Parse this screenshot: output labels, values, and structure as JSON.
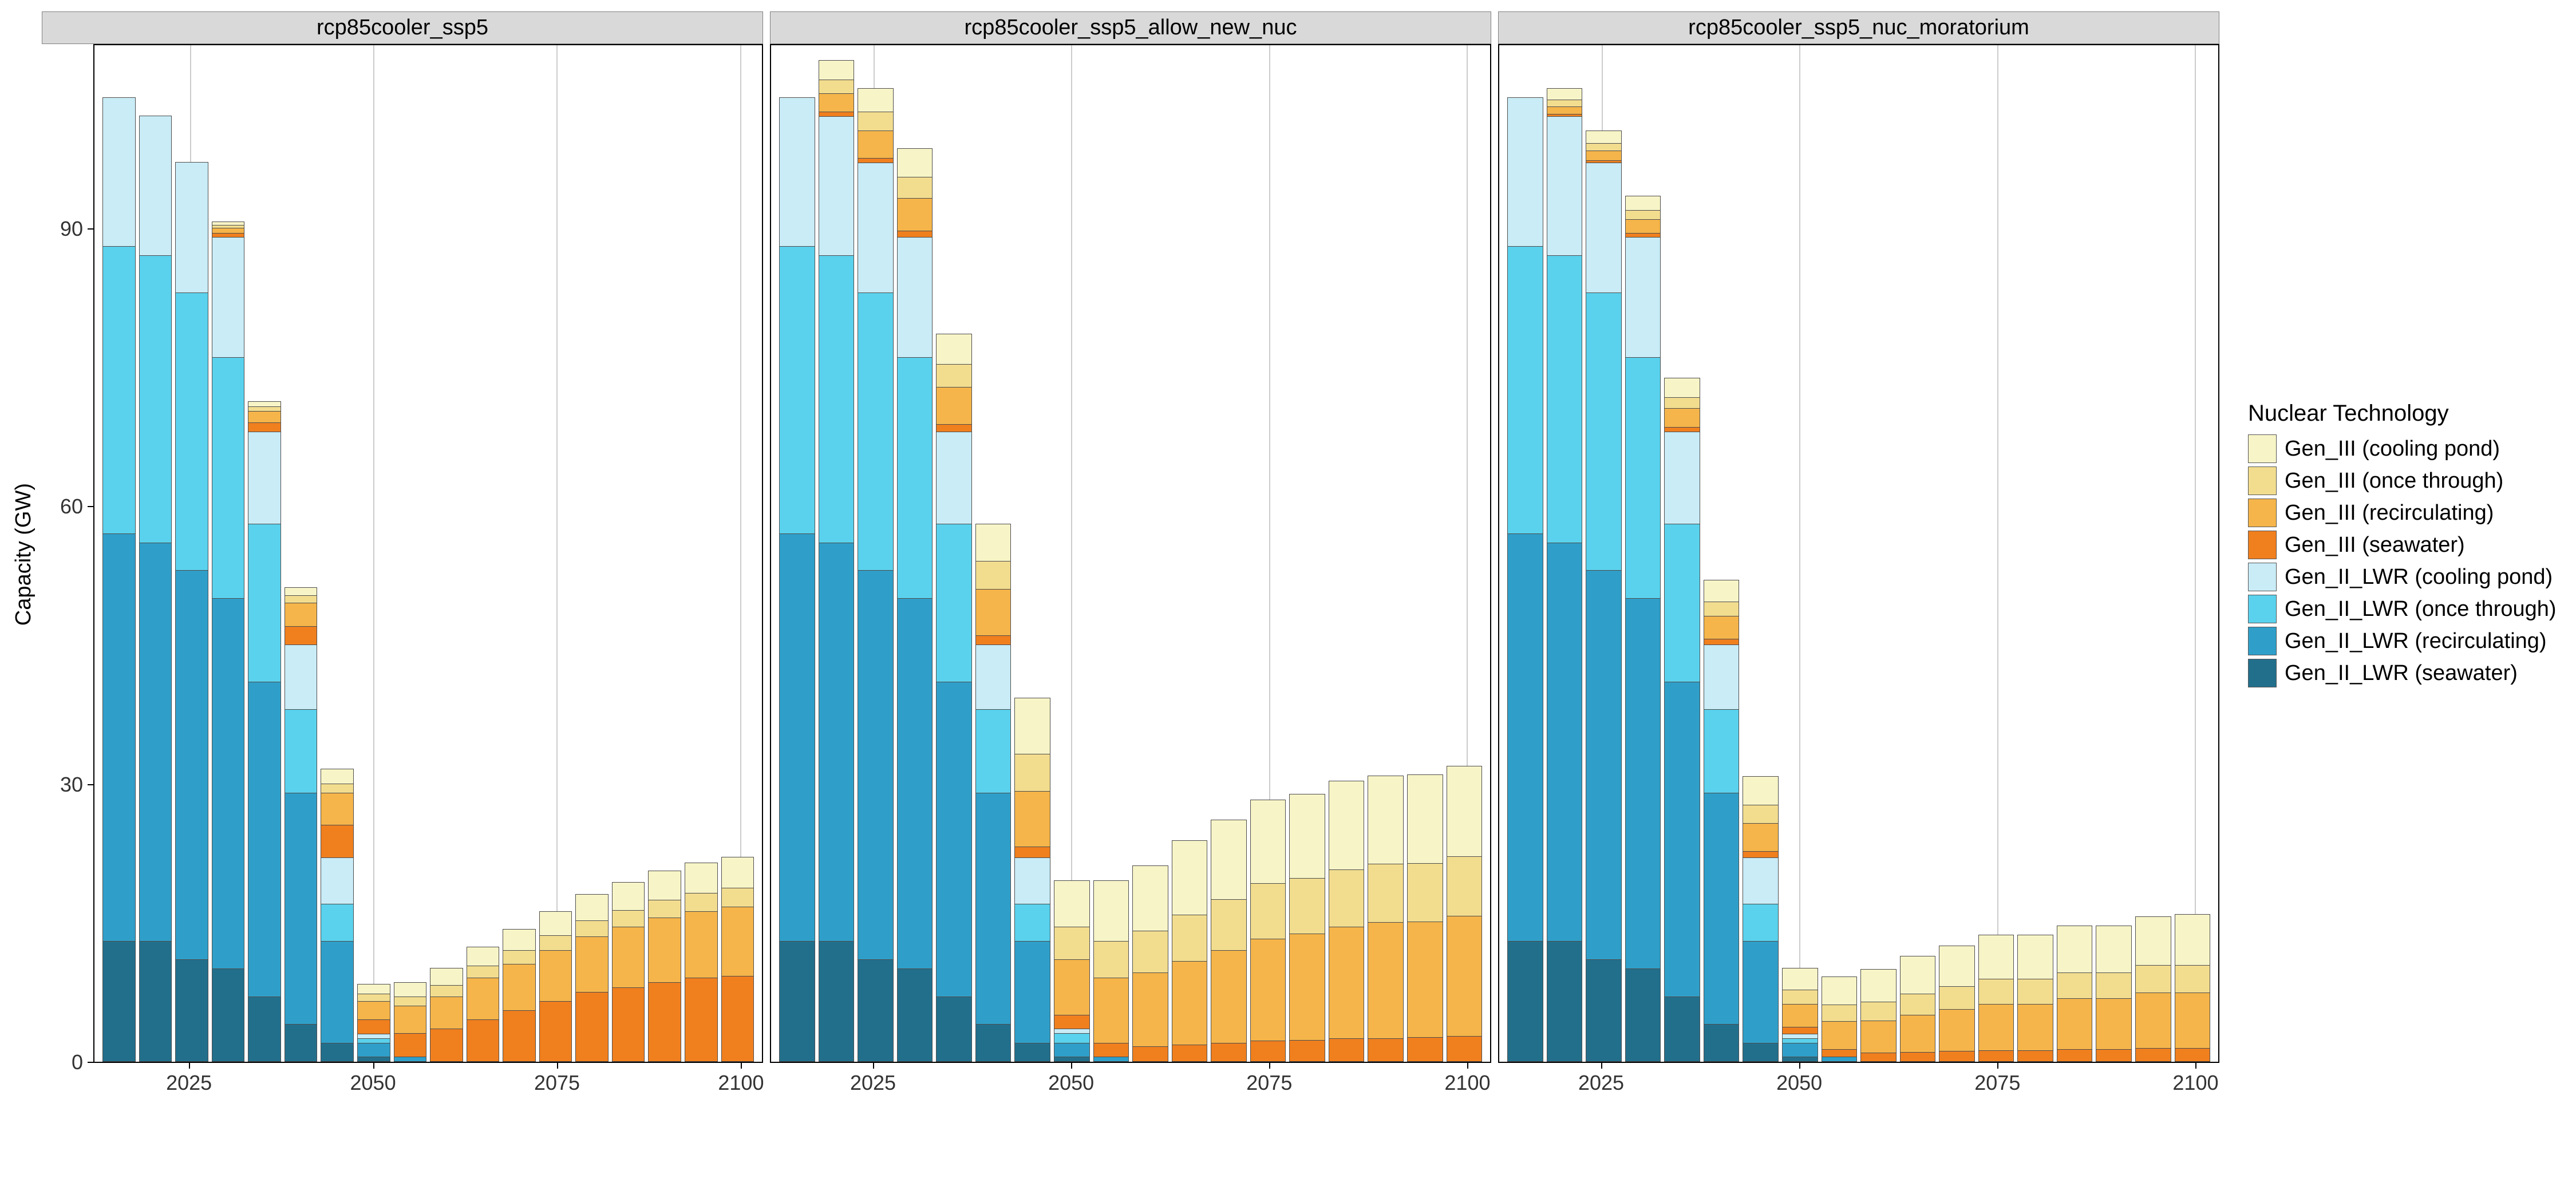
{
  "y_axis": {
    "title": "Capacity (GW)",
    "ticks": [
      0,
      30,
      60,
      90
    ],
    "max_display": 110
  },
  "x_axis": {
    "ticks": [
      2025,
      2050,
      2075,
      2100
    ],
    "years": [
      2015,
      2020,
      2025,
      2030,
      2035,
      2040,
      2045,
      2050,
      2055,
      2060,
      2065,
      2070,
      2075,
      2080,
      2085,
      2090,
      2095,
      2100
    ],
    "min": 2012,
    "max": 2103
  },
  "legend": {
    "title": "Nuclear Technology",
    "items": [
      {
        "key": "g3_pond",
        "label": "Gen_III (cooling pond)",
        "color": "#f7f4c7"
      },
      {
        "key": "g3_once",
        "label": "Gen_III (once through)",
        "color": "#f2dd8f"
      },
      {
        "key": "g3_recirc",
        "label": "Gen_III (recirculating)",
        "color": "#f5b54a"
      },
      {
        "key": "g3_sea",
        "label": "Gen_III (seawater)",
        "color": "#f07f1e"
      },
      {
        "key": "g2_pond",
        "label": "Gen_II_LWR (cooling pond)",
        "color": "#c9ecf7"
      },
      {
        "key": "g2_once",
        "label": "Gen_II_LWR (once through)",
        "color": "#5ad2ed"
      },
      {
        "key": "g2_recirc",
        "label": "Gen_II_LWR (recirculating)",
        "color": "#2f9fc9"
      },
      {
        "key": "g2_sea",
        "label": "Gen_II_LWR (seawater)",
        "color": "#226f8c"
      }
    ]
  },
  "stack_order": [
    "g2_sea",
    "g2_recirc",
    "g2_once",
    "g2_pond",
    "g3_sea",
    "g3_recirc",
    "g3_once",
    "g3_pond"
  ],
  "panels": [
    {
      "title": "rcp85cooler_ssp5",
      "data": [
        {
          "g2_sea": 13,
          "g2_recirc": 44,
          "g2_once": 31,
          "g2_pond": 16,
          "g3_sea": 0,
          "g3_recirc": 0,
          "g3_once": 0,
          "g3_pond": 0
        },
        {
          "g2_sea": 13,
          "g2_recirc": 43,
          "g2_once": 31,
          "g2_pond": 15,
          "g3_sea": 0,
          "g3_recirc": 0,
          "g3_once": 0,
          "g3_pond": 0
        },
        {
          "g2_sea": 11,
          "g2_recirc": 42,
          "g2_once": 30,
          "g2_pond": 14,
          "g3_sea": 0,
          "g3_recirc": 0,
          "g3_once": 0,
          "g3_pond": 0
        },
        {
          "g2_sea": 10,
          "g2_recirc": 40,
          "g2_once": 26,
          "g2_pond": 13,
          "g3_sea": 0.4,
          "g3_recirc": 0.6,
          "g3_once": 0.3,
          "g3_pond": 0.3
        },
        {
          "g2_sea": 7,
          "g2_recirc": 34,
          "g2_once": 17,
          "g2_pond": 10,
          "g3_sea": 1,
          "g3_recirc": 1.2,
          "g3_once": 0.5,
          "g3_pond": 0.5
        },
        {
          "g2_sea": 4,
          "g2_recirc": 25,
          "g2_once": 9,
          "g2_pond": 7,
          "g3_sea": 2,
          "g3_recirc": 2.5,
          "g3_once": 0.8,
          "g3_pond": 0.8
        },
        {
          "g2_sea": 2,
          "g2_recirc": 11,
          "g2_once": 4,
          "g2_pond": 5,
          "g3_sea": 3.5,
          "g3_recirc": 3.5,
          "g3_once": 1,
          "g3_pond": 1.5
        },
        {
          "g2_sea": 0.5,
          "g2_recirc": 1.5,
          "g2_once": 0.5,
          "g2_pond": 0.5,
          "g3_sea": 1.5,
          "g3_recirc": 2,
          "g3_once": 0.8,
          "g3_pond": 1
        },
        {
          "g2_sea": 0,
          "g2_recirc": 0.5,
          "g2_once": 0,
          "g2_pond": 0,
          "g3_sea": 2.5,
          "g3_recirc": 3,
          "g3_once": 1,
          "g3_pond": 1.5
        },
        {
          "g2_sea": 0,
          "g2_recirc": 0,
          "g2_once": 0,
          "g2_pond": 0,
          "g3_sea": 3.5,
          "g3_recirc": 3.5,
          "g3_once": 1.2,
          "g3_pond": 1.8
        },
        {
          "g2_sea": 0,
          "g2_recirc": 0,
          "g2_once": 0,
          "g2_pond": 0,
          "g3_sea": 4.5,
          "g3_recirc": 4.5,
          "g3_once": 1.3,
          "g3_pond": 2
        },
        {
          "g2_sea": 0,
          "g2_recirc": 0,
          "g2_once": 0,
          "g2_pond": 0,
          "g3_sea": 5.5,
          "g3_recirc": 5,
          "g3_once": 1.5,
          "g3_pond": 2.2
        },
        {
          "g2_sea": 0,
          "g2_recirc": 0,
          "g2_once": 0,
          "g2_pond": 0,
          "g3_sea": 6.5,
          "g3_recirc": 5.5,
          "g3_once": 1.6,
          "g3_pond": 2.5
        },
        {
          "g2_sea": 0,
          "g2_recirc": 0,
          "g2_once": 0,
          "g2_pond": 0,
          "g3_sea": 7.5,
          "g3_recirc": 6,
          "g3_once": 1.7,
          "g3_pond": 2.8
        },
        {
          "g2_sea": 0,
          "g2_recirc": 0,
          "g2_once": 0,
          "g2_pond": 0,
          "g3_sea": 8,
          "g3_recirc": 6.5,
          "g3_once": 1.8,
          "g3_pond": 3
        },
        {
          "g2_sea": 0,
          "g2_recirc": 0,
          "g2_once": 0,
          "g2_pond": 0,
          "g3_sea": 8.5,
          "g3_recirc": 7,
          "g3_once": 1.9,
          "g3_pond": 3.1
        },
        {
          "g2_sea": 0,
          "g2_recirc": 0,
          "g2_once": 0,
          "g2_pond": 0,
          "g3_sea": 9,
          "g3_recirc": 7.2,
          "g3_once": 2,
          "g3_pond": 3.2
        },
        {
          "g2_sea": 0,
          "g2_recirc": 0,
          "g2_once": 0,
          "g2_pond": 0,
          "g3_sea": 9.2,
          "g3_recirc": 7.5,
          "g3_once": 2,
          "g3_pond": 3.3
        }
      ]
    },
    {
      "title": "rcp85cooler_ssp5_allow_new_nuc",
      "data": [
        {
          "g2_sea": 13,
          "g2_recirc": 44,
          "g2_once": 31,
          "g2_pond": 16,
          "g3_sea": 0,
          "g3_recirc": 0,
          "g3_once": 0,
          "g3_pond": 0
        },
        {
          "g2_sea": 13,
          "g2_recirc": 43,
          "g2_once": 31,
          "g2_pond": 15,
          "g3_sea": 0.5,
          "g3_recirc": 2,
          "g3_once": 1.5,
          "g3_pond": 2
        },
        {
          "g2_sea": 11,
          "g2_recirc": 42,
          "g2_once": 30,
          "g2_pond": 14,
          "g3_sea": 0.5,
          "g3_recirc": 3,
          "g3_once": 2,
          "g3_pond": 2.5
        },
        {
          "g2_sea": 10,
          "g2_recirc": 40,
          "g2_once": 26,
          "g2_pond": 13,
          "g3_sea": 0.7,
          "g3_recirc": 3.5,
          "g3_once": 2.3,
          "g3_pond": 3
        },
        {
          "g2_sea": 7,
          "g2_recirc": 34,
          "g2_once": 17,
          "g2_pond": 10,
          "g3_sea": 0.8,
          "g3_recirc": 4,
          "g3_once": 2.5,
          "g3_pond": 3.2
        },
        {
          "g2_sea": 4,
          "g2_recirc": 25,
          "g2_once": 9,
          "g2_pond": 7,
          "g3_sea": 1,
          "g3_recirc": 5,
          "g3_once": 3,
          "g3_pond": 4
        },
        {
          "g2_sea": 2,
          "g2_recirc": 11,
          "g2_once": 4,
          "g2_pond": 5,
          "g3_sea": 1.2,
          "g3_recirc": 6,
          "g3_once": 4,
          "g3_pond": 6
        },
        {
          "g2_sea": 0.5,
          "g2_recirc": 1.5,
          "g2_once": 1,
          "g2_pond": 0.5,
          "g3_sea": 1.5,
          "g3_recirc": 6,
          "g3_once": 3.5,
          "g3_pond": 5
        },
        {
          "g2_sea": 0,
          "g2_recirc": 0.5,
          "g2_once": 0,
          "g2_pond": 0,
          "g3_sea": 1.5,
          "g3_recirc": 7,
          "g3_once": 4,
          "g3_pond": 6.5
        },
        {
          "g2_sea": 0,
          "g2_recirc": 0,
          "g2_once": 0,
          "g2_pond": 0,
          "g3_sea": 1.6,
          "g3_recirc": 8,
          "g3_once": 4.5,
          "g3_pond": 7
        },
        {
          "g2_sea": 0,
          "g2_recirc": 0,
          "g2_once": 0,
          "g2_pond": 0,
          "g3_sea": 1.8,
          "g3_recirc": 9,
          "g3_once": 5,
          "g3_pond": 8
        },
        {
          "g2_sea": 0,
          "g2_recirc": 0,
          "g2_once": 0,
          "g2_pond": 0,
          "g3_sea": 2,
          "g3_recirc": 10,
          "g3_once": 5.5,
          "g3_pond": 8.5
        },
        {
          "g2_sea": 0,
          "g2_recirc": 0,
          "g2_once": 0,
          "g2_pond": 0,
          "g3_sea": 2.2,
          "g3_recirc": 11,
          "g3_once": 6,
          "g3_pond": 9
        },
        {
          "g2_sea": 0,
          "g2_recirc": 0,
          "g2_once": 0,
          "g2_pond": 0,
          "g3_sea": 2.3,
          "g3_recirc": 11.5,
          "g3_once": 6,
          "g3_pond": 9
        },
        {
          "g2_sea": 0,
          "g2_recirc": 0,
          "g2_once": 0,
          "g2_pond": 0,
          "g3_sea": 2.5,
          "g3_recirc": 12,
          "g3_once": 6.2,
          "g3_pond": 9.5
        },
        {
          "g2_sea": 0,
          "g2_recirc": 0,
          "g2_once": 0,
          "g2_pond": 0,
          "g3_sea": 2.5,
          "g3_recirc": 12.5,
          "g3_once": 6.3,
          "g3_pond": 9.5
        },
        {
          "g2_sea": 0,
          "g2_recirc": 0,
          "g2_once": 0,
          "g2_pond": 0,
          "g3_sea": 2.6,
          "g3_recirc": 12.5,
          "g3_once": 6.3,
          "g3_pond": 9.5
        },
        {
          "g2_sea": 0,
          "g2_recirc": 0,
          "g2_once": 0,
          "g2_pond": 0,
          "g3_sea": 2.7,
          "g3_recirc": 13,
          "g3_once": 6.4,
          "g3_pond": 9.7
        }
      ]
    },
    {
      "title": "rcp85cooler_ssp5_nuc_moratorium",
      "data": [
        {
          "g2_sea": 13,
          "g2_recirc": 44,
          "g2_once": 31,
          "g2_pond": 16,
          "g3_sea": 0,
          "g3_recirc": 0,
          "g3_once": 0,
          "g3_pond": 0
        },
        {
          "g2_sea": 13,
          "g2_recirc": 43,
          "g2_once": 31,
          "g2_pond": 15,
          "g3_sea": 0.3,
          "g3_recirc": 0.8,
          "g3_once": 0.7,
          "g3_pond": 1.2
        },
        {
          "g2_sea": 11,
          "g2_recirc": 42,
          "g2_once": 30,
          "g2_pond": 14,
          "g3_sea": 0.3,
          "g3_recirc": 1,
          "g3_once": 0.8,
          "g3_pond": 1.3
        },
        {
          "g2_sea": 10,
          "g2_recirc": 40,
          "g2_once": 26,
          "g2_pond": 13,
          "g3_sea": 0.4,
          "g3_recirc": 1.5,
          "g3_once": 1,
          "g3_pond": 1.5
        },
        {
          "g2_sea": 7,
          "g2_recirc": 34,
          "g2_once": 17,
          "g2_pond": 10,
          "g3_sea": 0.5,
          "g3_recirc": 2,
          "g3_once": 1.2,
          "g3_pond": 2
        },
        {
          "g2_sea": 4,
          "g2_recirc": 25,
          "g2_once": 9,
          "g2_pond": 7,
          "g3_sea": 0.6,
          "g3_recirc": 2.5,
          "g3_once": 1.5,
          "g3_pond": 2.3
        },
        {
          "g2_sea": 2,
          "g2_recirc": 11,
          "g2_once": 4,
          "g2_pond": 5,
          "g3_sea": 0.7,
          "g3_recirc": 3,
          "g3_once": 2,
          "g3_pond": 3
        },
        {
          "g2_sea": 0.5,
          "g2_recirc": 1.5,
          "g2_once": 0.5,
          "g2_pond": 0.5,
          "g3_sea": 0.7,
          "g3_recirc": 2.5,
          "g3_once": 1.5,
          "g3_pond": 2.3
        },
        {
          "g2_sea": 0,
          "g2_recirc": 0.5,
          "g2_once": 0,
          "g2_pond": 0,
          "g3_sea": 0.8,
          "g3_recirc": 3,
          "g3_once": 1.8,
          "g3_pond": 3
        },
        {
          "g2_sea": 0,
          "g2_recirc": 0,
          "g2_once": 0,
          "g2_pond": 0,
          "g3_sea": 0.9,
          "g3_recirc": 3.5,
          "g3_once": 2,
          "g3_pond": 3.5
        },
        {
          "g2_sea": 0,
          "g2_recirc": 0,
          "g2_once": 0,
          "g2_pond": 0,
          "g3_sea": 1,
          "g3_recirc": 4,
          "g3_once": 2.3,
          "g3_pond": 4
        },
        {
          "g2_sea": 0,
          "g2_recirc": 0,
          "g2_once": 0,
          "g2_pond": 0,
          "g3_sea": 1.1,
          "g3_recirc": 4.5,
          "g3_once": 2.5,
          "g3_pond": 4.3
        },
        {
          "g2_sea": 0,
          "g2_recirc": 0,
          "g2_once": 0,
          "g2_pond": 0,
          "g3_sea": 1.2,
          "g3_recirc": 5,
          "g3_once": 2.7,
          "g3_pond": 4.7
        },
        {
          "g2_sea": 0,
          "g2_recirc": 0,
          "g2_once": 0,
          "g2_pond": 0,
          "g3_sea": 1.2,
          "g3_recirc": 5,
          "g3_once": 2.7,
          "g3_pond": 4.7
        },
        {
          "g2_sea": 0,
          "g2_recirc": 0,
          "g2_once": 0,
          "g2_pond": 0,
          "g3_sea": 1.3,
          "g3_recirc": 5.5,
          "g3_once": 2.8,
          "g3_pond": 5
        },
        {
          "g2_sea": 0,
          "g2_recirc": 0,
          "g2_once": 0,
          "g2_pond": 0,
          "g3_sea": 1.3,
          "g3_recirc": 5.5,
          "g3_once": 2.8,
          "g3_pond": 5
        },
        {
          "g2_sea": 0,
          "g2_recirc": 0,
          "g2_once": 0,
          "g2_pond": 0,
          "g3_sea": 1.4,
          "g3_recirc": 6,
          "g3_once": 3,
          "g3_pond": 5.2
        },
        {
          "g2_sea": 0,
          "g2_recirc": 0,
          "g2_once": 0,
          "g2_pond": 0,
          "g3_sea": 1.4,
          "g3_recirc": 6,
          "g3_once": 3,
          "g3_pond": 5.4
        }
      ]
    }
  ],
  "styling": {
    "panel_bg": "#ffffff",
    "strip_bg": "#d9d9d9",
    "grid_color": "#cccccc",
    "border_color": "#000000",
    "bar_border": "#4d4d4d",
    "font_family": "Arial",
    "axis_fontsize_pt": 28,
    "strip_fontsize_pt": 28,
    "legend_fontsize_pt": 28
  }
}
